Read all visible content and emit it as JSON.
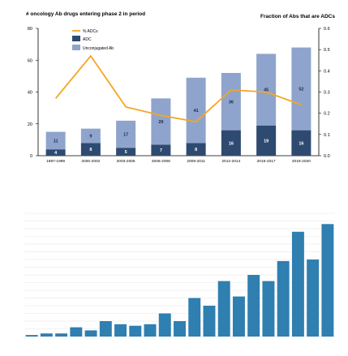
{
  "colors": {
    "adc": "#2e4a70",
    "unconjugated": "#8fa4cc",
    "line": "#f5a623",
    "bar2": "#2f7fb0",
    "axis": "#000000",
    "grid": "#e6e6e6"
  },
  "chart_data": [
    {
      "type": "bar",
      "title": "# oncology Ab drugs entering phase 2 in period",
      "y2label": "Fraction of Abs that are ADCs",
      "categories": [
        "1997-1999",
        "2000-2002",
        "2003-2005",
        "2006-2008",
        "2009-2011",
        "2012-2014",
        "2015-2017",
        "2018-2020"
      ],
      "ylim": [
        0,
        80
      ],
      "yticks": [
        "0",
        "20",
        "40",
        "60",
        "80"
      ],
      "y2lim": [
        0,
        0.6
      ],
      "y2ticks": [
        "0.0",
        "0.1",
        "0.2",
        "0.3",
        "0.4",
        "0.5",
        "0.6"
      ],
      "legend": [
        "% ADCs",
        "ADC",
        "Unconjugated Ab"
      ],
      "legend_position": "top-left",
      "series": [
        {
          "name": "ADC",
          "values": [
            4,
            8,
            5,
            7,
            8,
            16,
            19,
            16
          ],
          "labels": [
            "4",
            "8",
            "5",
            "7",
            "8",
            "16",
            "19",
            "16"
          ]
        },
        {
          "name": "Unconjugated Ab",
          "values": [
            11,
            9,
            17,
            29,
            41,
            36,
            45,
            52
          ],
          "labels": [
            "11",
            "9",
            "17",
            "29",
            "41",
            "36",
            "45",
            "52"
          ]
        },
        {
          "name": "% ADCs",
          "values": [
            0.27,
            0.47,
            0.23,
            0.19,
            0.16,
            0.31,
            0.3,
            0.24
          ],
          "axis": "right"
        }
      ]
    },
    {
      "type": "bar",
      "values": [
        1,
        2,
        2,
        6,
        4,
        10,
        8,
        7,
        8,
        15,
        10,
        25,
        20,
        36,
        26,
        40,
        36,
        49,
        68,
        50,
        73
      ],
      "ylim": [
        0,
        80
      ],
      "grid": true
    }
  ]
}
